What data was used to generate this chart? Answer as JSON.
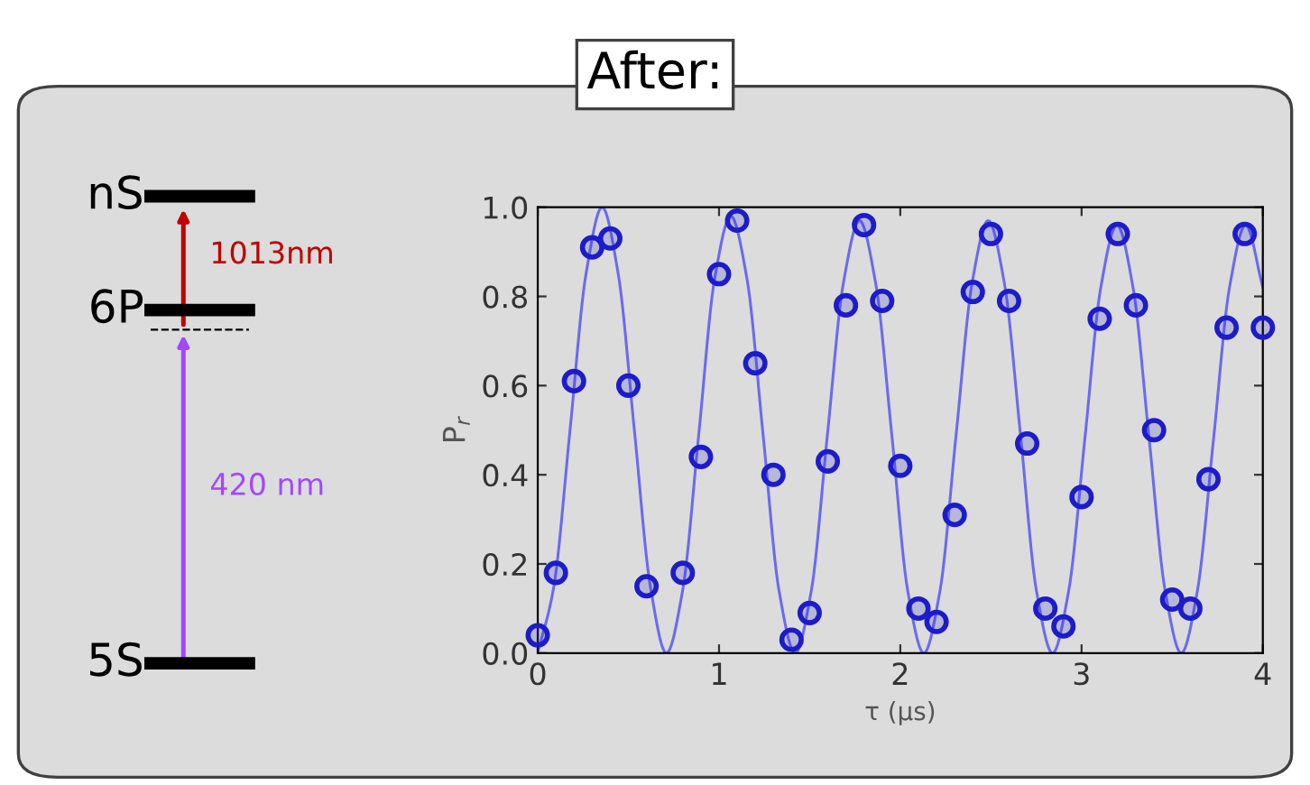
{
  "chart_data": [
    {
      "type": "other",
      "title": "After:",
      "categories": [
        "nS",
        "6P",
        "5S"
      ],
      "annotations": [
        "1013nm",
        "420 nm"
      ],
      "colors": [
        "#c00000",
        "#a347ff"
      ]
    },
    {
      "type": "scatter",
      "xlabel": "τ (μs)",
      "ylabel": "P$_{r}$",
      "xlim": [
        0,
        4
      ],
      "ylim": [
        0,
        1
      ],
      "xticks": [
        0,
        1,
        2,
        3,
        4
      ],
      "yticks": [
        {
          "value": 0,
          "label": "0.0"
        },
        {
          "value": 0.2,
          "label": "0.2"
        },
        {
          "value": 0.4,
          "label": "0.4"
        },
        {
          "value": 0.6,
          "label": "0.6"
        },
        {
          "value": 0.8,
          "label": "0.8"
        },
        {
          "value": 1,
          "label": "1.0"
        }
      ],
      "grid": false,
      "legend": false,
      "series": [
        {
          "type": "line",
          "color": "#6a6af0",
          "marker": "none",
          "line_style": "solid",
          "x": [
            0,
            0.089,
            0.178,
            0.266,
            0.355,
            0.444,
            0.533,
            0.621,
            0.71,
            0.799,
            0.888,
            0.976,
            1.065,
            1.154,
            1.243,
            1.331,
            1.42,
            1.509,
            1.598,
            1.686,
            1.775,
            1.864,
            1.953,
            2.041,
            2.13,
            2.219,
            2.308,
            2.396,
            2.485,
            2.574,
            2.663,
            2.751,
            2.84,
            2.929,
            3.018,
            3.106,
            3.195,
            3.284,
            3.373,
            3.461,
            3.55,
            3.639,
            3.728,
            3.816,
            3.905,
            4.0
          ],
          "values": [
            0,
            0.15,
            0.5,
            0.85,
            1,
            0.85,
            0.5,
            0.15,
            0,
            0.14,
            0.49,
            0.84,
            0.98,
            0.84,
            0.49,
            0.14,
            0,
            0.14,
            0.49,
            0.83,
            0.97,
            0.83,
            0.49,
            0.14,
            0,
            0.14,
            0.49,
            0.83,
            0.97,
            0.83,
            0.49,
            0.14,
            0,
            0.14,
            0.48,
            0.82,
            0.96,
            0.82,
            0.48,
            0.14,
            0,
            0.14,
            0.48,
            0.82,
            0.96,
            0.82
          ]
        },
        {
          "type": "scatter",
          "color": "#1c1cc8",
          "marker": "circle",
          "x": [
            0,
            0.1,
            0.2,
            0.3,
            0.4,
            0.5,
            0.6,
            0.8,
            0.9,
            1.0,
            1.1,
            1.2,
            1.3,
            1.4,
            1.5,
            1.6,
            1.7,
            1.8,
            1.9,
            2.0,
            2.1,
            2.2,
            2.3,
            2.4,
            2.5,
            2.6,
            2.7,
            2.8,
            2.9,
            3.0,
            3.1,
            3.2,
            3.3,
            3.4,
            3.5,
            3.6,
            3.7,
            3.8,
            3.9,
            4.0
          ],
          "values": [
            0.04,
            0.18,
            0.61,
            0.91,
            0.93,
            0.6,
            0.15,
            0.18,
            0.44,
            0.85,
            0.97,
            0.65,
            0.4,
            0.03,
            0.09,
            0.43,
            0.78,
            0.96,
            0.79,
            0.42,
            0.1,
            0.07,
            0.31,
            0.81,
            0.94,
            0.79,
            0.47,
            0.1,
            0.06,
            0.35,
            0.75,
            0.94,
            0.78,
            0.5,
            0.12,
            0.1,
            0.39,
            0.73,
            0.94,
            0.73
          ]
        }
      ]
    }
  ]
}
